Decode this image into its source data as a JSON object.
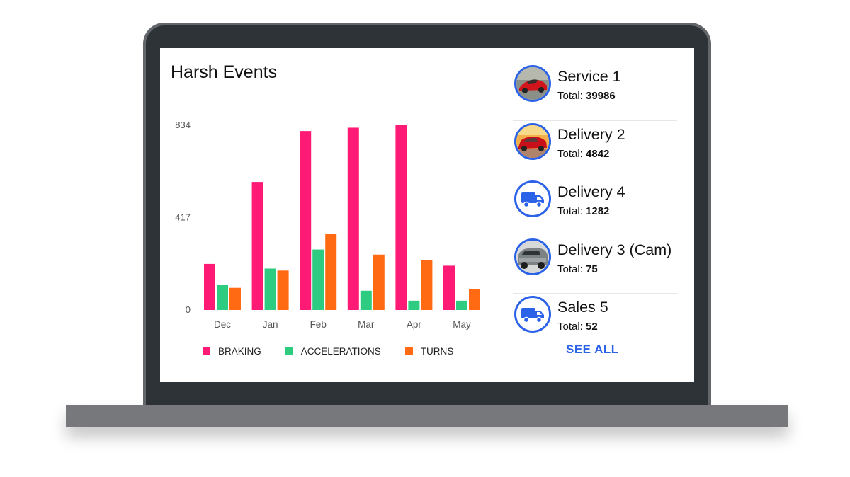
{
  "widget": {
    "title": "Harsh Events",
    "see_all_label": "SEE ALL"
  },
  "chart_data": {
    "type": "bar",
    "title": "Harsh Events",
    "categories": [
      "Dec",
      "Jan",
      "Feb",
      "Mar",
      "Apr",
      "May"
    ],
    "ylim": [
      0,
      834
    ],
    "yticks": [
      "834",
      "417",
      "0"
    ],
    "ytick_values": [
      834,
      417,
      0
    ],
    "grid": false,
    "legend_position": "bottom",
    "series": [
      {
        "name": "BRAKING",
        "color": "#ff1a75",
        "values": [
          208,
          578,
          808,
          823,
          834,
          200
        ]
      },
      {
        "name": "ACCELERATIONS",
        "color": "#2ecc80",
        "values": [
          115,
          187,
          273,
          87,
          42,
          42
        ]
      },
      {
        "name": "TURNS",
        "color": "#ff6a13",
        "values": [
          100,
          178,
          342,
          250,
          224,
          94
        ]
      }
    ]
  },
  "vehicles": [
    {
      "name": "Service 1",
      "total_label": "Total:",
      "total": "39986",
      "icon": "red-sports-car-photo"
    },
    {
      "name": "Delivery 2",
      "total_label": "Total:",
      "total": "4842",
      "icon": "red-car-photo"
    },
    {
      "name": "Delivery 4",
      "total_label": "Total:",
      "total": "1282",
      "icon": "truck-icon"
    },
    {
      "name": "Delivery 3 (Cam)",
      "total_label": "Total:",
      "total": "75",
      "icon": "grey-suv-photo"
    },
    {
      "name": "Sales 5",
      "total_label": "Total:",
      "total": "52",
      "icon": "truck-icon"
    }
  ],
  "colors": {
    "accent": "#2b62e8",
    "braking": "#ff1a75",
    "accelerations": "#2ecc80",
    "turns": "#ff6a13"
  }
}
